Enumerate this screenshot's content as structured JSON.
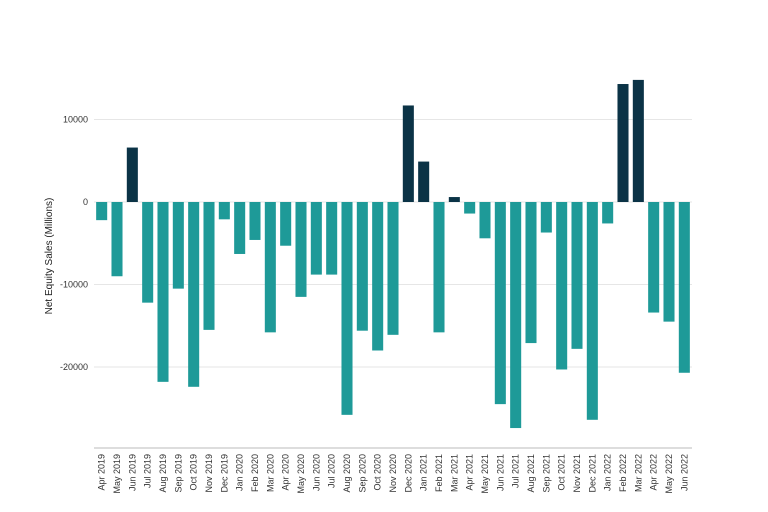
{
  "chart_data": {
    "type": "bar",
    "title": "",
    "xlabel": "",
    "ylabel": "Net Equity Sales (Millions)",
    "ylim": [
      -30000,
      16000
    ],
    "yticks": [
      -20000,
      -10000,
      0,
      10000
    ],
    "grid": true,
    "legend": "none",
    "colors": {
      "positive": "#0b3346",
      "negative": "#1e9a98",
      "grid": "#e6e6e6",
      "axis": "#bbbbbb"
    },
    "categories": [
      "Apr 2019",
      "May 2019",
      "Jun 2019",
      "Jul 2019",
      "Aug 2019",
      "Sep 2019",
      "Oct 2019",
      "Nov 2019",
      "Dec 2019",
      "Jan 2020",
      "Feb 2020",
      "Mar 2020",
      "Apr 2020",
      "May 2020",
      "Jun 2020",
      "Jul 2020",
      "Aug 2020",
      "Sep 2020",
      "Oct 2020",
      "Nov 2020",
      "Dec 2020",
      "Jan 2021",
      "Feb 2021",
      "Mar 2021",
      "Apr 2021",
      "May 2021",
      "Jun 2021",
      "Jul 2021",
      "Aug 2021",
      "Sep 2021",
      "Oct 2021",
      "Nov 2021",
      "Dec 2021",
      "Jan 2022",
      "Feb 2022",
      "Mar 2022",
      "Apr 2022",
      "May 2022",
      "Jun 2022"
    ],
    "values": [
      -2200,
      -9000,
      6600,
      -12200,
      -21800,
      -10500,
      -22400,
      -15500,
      -2100,
      -6300,
      -4600,
      -15800,
      -5300,
      -11500,
      -8800,
      -8800,
      -25800,
      -15600,
      -18000,
      -16100,
      11700,
      4900,
      -15800,
      600,
      -1400,
      -4400,
      -24500,
      -27400,
      -17100,
      -3700,
      -20300,
      -17800,
      -26400,
      -2600,
      14300,
      14800,
      -13400,
      -14500,
      -20700
    ]
  }
}
